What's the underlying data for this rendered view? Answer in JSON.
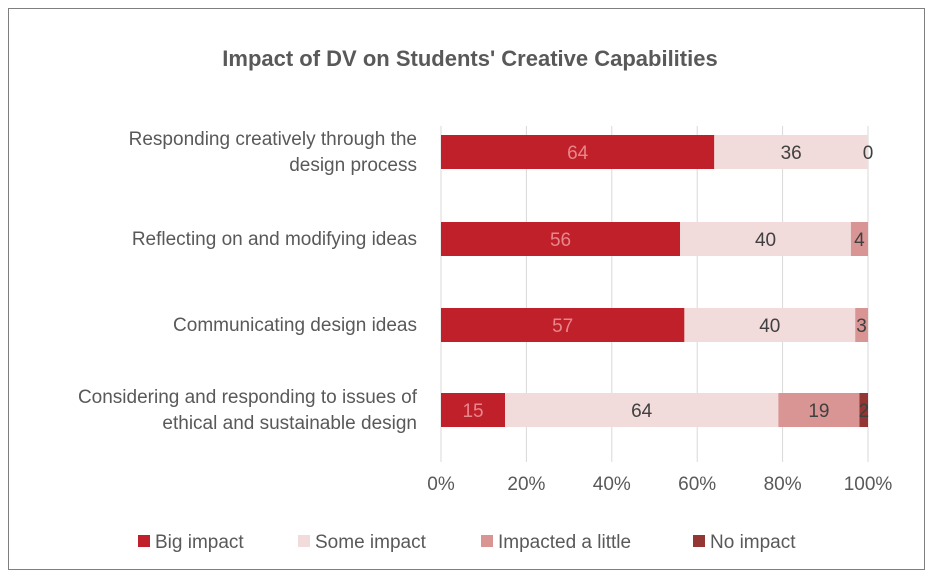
{
  "chart_data": {
    "type": "bar",
    "orientation": "horizontal",
    "stacked": "percent",
    "title": "Impact of DV on Students' Creative Capabilities",
    "categories": [
      [
        "Responding creatively through the",
        "design process"
      ],
      [
        "Reflecting on and modifying ideas"
      ],
      [
        "Communicating design ideas"
      ],
      [
        "Considering and responding to issues of",
        "ethical and sustainable design"
      ]
    ],
    "series": [
      {
        "name": "Big impact",
        "color": "#c0202a",
        "label_color": "#e8868c",
        "values": [
          64,
          56,
          57,
          15
        ]
      },
      {
        "name": "Some impact",
        "color": "#f2dcdb",
        "label_color": "#404040",
        "values": [
          36,
          40,
          40,
          64
        ]
      },
      {
        "name": "Impacted a little",
        "color": "#d99594",
        "label_color": "#404040",
        "values": [
          0,
          4,
          3,
          19
        ]
      },
      {
        "name": "No impact",
        "color": "#943634",
        "label_color": "#404040",
        "values": [
          null,
          null,
          null,
          2
        ]
      }
    ],
    "xticks": [
      "0%",
      "20%",
      "40%",
      "60%",
      "80%",
      "100%"
    ],
    "xlim": [
      0,
      100
    ],
    "grid": "vertical",
    "legend": "bottom"
  }
}
